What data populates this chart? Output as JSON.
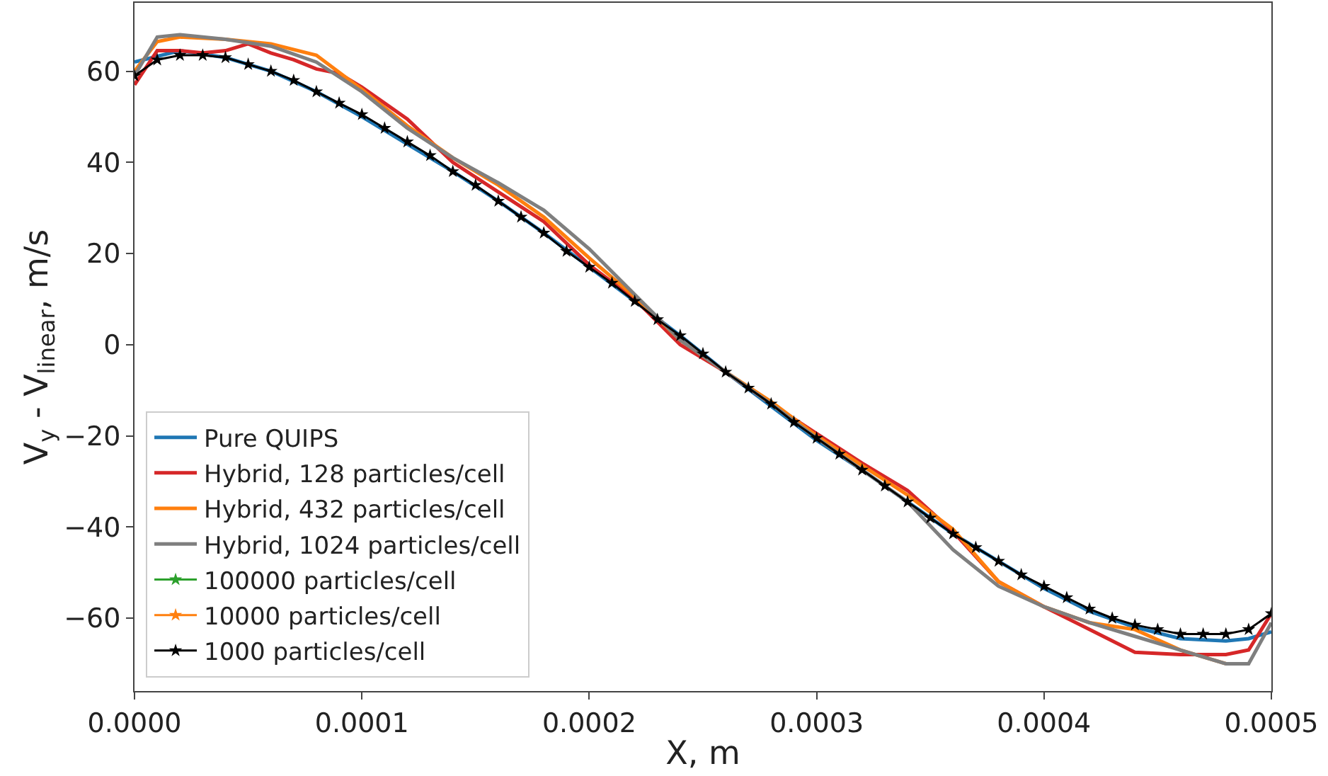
{
  "chart_data": {
    "type": "line",
    "xlabel": "X, m",
    "ylabel": "V$_{y}$ - V$_{linear}$, m/s",
    "xlim": [
      0,
      0.0005
    ],
    "ylim": [
      -76,
      75
    ],
    "xticks": [
      {
        "value": 0,
        "label": "0.0000"
      },
      {
        "value": 0.0001,
        "label": "0.0001"
      },
      {
        "value": 0.0002,
        "label": "0.0002"
      },
      {
        "value": 0.0003,
        "label": "0.0003"
      },
      {
        "value": 0.0004,
        "label": "0.0004"
      },
      {
        "value": 0.0005,
        "label": "0.0005"
      }
    ],
    "yticks": [
      -60,
      -40,
      -20,
      0,
      20,
      40,
      60
    ],
    "legend": "bottom left",
    "line_style": "solid",
    "series": [
      {
        "name": "Pure QUIPS",
        "color": "#1f77b4",
        "marker": "none",
        "x": [
          0,
          2e-05,
          4e-05,
          6e-05,
          8e-05,
          0.0001,
          0.00012,
          0.00014,
          0.00016,
          0.00018,
          0.0002,
          0.00022,
          0.00024,
          0.00026,
          0.00028,
          0.0003,
          0.00032,
          0.00034,
          0.00036,
          0.00038,
          0.0004,
          0.00042,
          0.00044,
          0.00046,
          0.00048,
          0.00049,
          0.0005
        ],
        "values": [
          62,
          64.5,
          63,
          60,
          55.5,
          50,
          44,
          38,
          31.5,
          24.5,
          17,
          9.5,
          2,
          -6,
          -13.5,
          -21,
          -27.5,
          -34.5,
          -41.5,
          -47.5,
          -53.5,
          -58.5,
          -62,
          -64.5,
          -65,
          -64.5,
          -63
        ]
      },
      {
        "name": "Hybrid, 128 particles/cell",
        "color": "#d62728",
        "marker": "none",
        "x": [
          0,
          1e-05,
          2e-05,
          3e-05,
          4e-05,
          5e-05,
          6e-05,
          7e-05,
          8e-05,
          9e-05,
          0.0001,
          0.00012,
          0.00014,
          0.00016,
          0.00018,
          0.0002,
          0.00022,
          0.00024,
          0.00026,
          0.00028,
          0.0003,
          0.00032,
          0.00034,
          0.00036,
          0.00038,
          0.0004,
          0.00042,
          0.00044,
          0.00046,
          0.00048,
          0.00049,
          0.0005
        ],
        "values": [
          57,
          64.5,
          64.5,
          64,
          64.5,
          66,
          64,
          62.5,
          60.5,
          59.5,
          56.5,
          49.5,
          40,
          33.5,
          27,
          17.5,
          10,
          0,
          -6,
          -13,
          -19.5,
          -26,
          -32,
          -41,
          -52,
          -57.5,
          -62.5,
          -67.5,
          -68,
          -68,
          -67,
          -59
        ]
      },
      {
        "name": "Hybrid, 432 particles/cell",
        "color": "#ff7f0e",
        "marker": "none",
        "x": [
          0,
          1e-05,
          2e-05,
          4e-05,
          6e-05,
          8e-05,
          0.0001,
          0.00012,
          0.00014,
          0.00016,
          0.00018,
          0.0002,
          0.00022,
          0.00024,
          0.00026,
          0.00028,
          0.0003,
          0.00032,
          0.00034,
          0.00036,
          0.00038,
          0.0004,
          0.00042,
          0.00044,
          0.00046,
          0.00048
        ],
        "values": [
          60,
          66.5,
          67.5,
          67,
          66,
          63.5,
          56,
          48,
          41,
          35,
          28,
          19,
          10.5,
          1,
          -6,
          -12.5,
          -20,
          -26.5,
          -33,
          -40.5,
          -52,
          -57.5,
          -61,
          -62.5,
          -67,
          -70
        ]
      },
      {
        "name": "Hybrid, 1024 particles/cell",
        "color": "#7f7f7f",
        "marker": "none",
        "x": [
          0,
          1e-05,
          2e-05,
          4e-05,
          6e-05,
          8e-05,
          0.0001,
          0.00012,
          0.00014,
          0.00016,
          0.00018,
          0.0002,
          0.00022,
          0.00024,
          0.00026,
          0.00028,
          0.0003,
          0.00032,
          0.00034,
          0.00036,
          0.00038,
          0.0004,
          0.00042,
          0.00044,
          0.00046,
          0.00048,
          0.00049,
          0.0005
        ],
        "values": [
          59,
          67.5,
          68,
          67,
          65.5,
          62,
          55.5,
          47.5,
          41,
          35.5,
          29.5,
          21,
          11,
          1,
          -6,
          -13,
          -20.5,
          -27.5,
          -34.5,
          -45,
          -53,
          -57.5,
          -61,
          -64,
          -67,
          -70,
          -70,
          -61
        ]
      },
      {
        "name": "100000 particles/cell",
        "color": "#2ca02c",
        "marker": "star",
        "values": [
          null
        ]
      },
      {
        "name": "10000 particles/cell",
        "color": "#ff7f0e",
        "marker": "star",
        "values": [
          null
        ]
      },
      {
        "name": "1000 particles/cell",
        "color": "#000000",
        "marker": "star",
        "x": [
          0,
          1e-05,
          2e-05,
          3e-05,
          4e-05,
          5e-05,
          6e-05,
          7e-05,
          8e-05,
          9e-05,
          0.0001,
          0.00011,
          0.00012,
          0.00013,
          0.00014,
          0.00015,
          0.00016,
          0.00017,
          0.00018,
          0.00019,
          0.0002,
          0.00021,
          0.00022,
          0.00023,
          0.00024,
          0.00025,
          0.00026,
          0.00027,
          0.00028,
          0.00029,
          0.0003,
          0.00031,
          0.00032,
          0.00033,
          0.00034,
          0.00035,
          0.00036,
          0.00037,
          0.00038,
          0.00039,
          0.0004,
          0.00041,
          0.00042,
          0.00043,
          0.00044,
          0.00045,
          0.00046,
          0.00047,
          0.00048,
          0.00049,
          0.0005
        ],
        "values": [
          59,
          62.5,
          63.5,
          63.5,
          63,
          61.5,
          60,
          58,
          55.5,
          53,
          50.5,
          47.5,
          44.5,
          41.5,
          38,
          35,
          31.5,
          28,
          24.5,
          20.5,
          17,
          13.5,
          9.5,
          5.5,
          2,
          -2,
          -6,
          -9.5,
          -13,
          -17,
          -20.5,
          -24,
          -27.5,
          -31,
          -34.5,
          -38,
          -41.5,
          -44.5,
          -47.5,
          -50.5,
          -53,
          -55.5,
          -58,
          -60,
          -61.5,
          -62.5,
          -63.5,
          -63.5,
          -63.5,
          -62.5,
          -59
        ]
      }
    ]
  }
}
